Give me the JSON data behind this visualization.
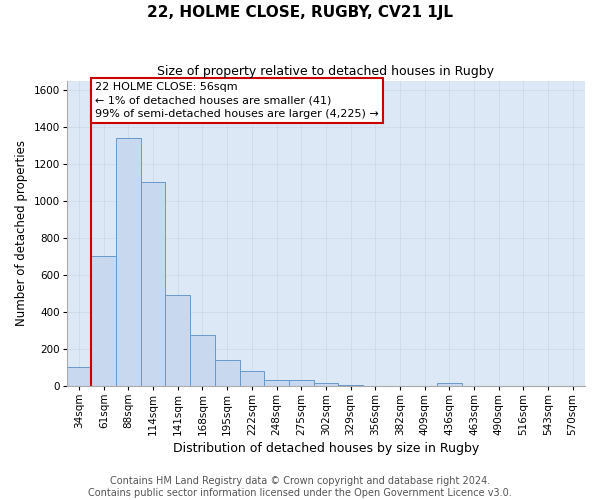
{
  "title": "22, HOLME CLOSE, RUGBY, CV21 1JL",
  "subtitle": "Size of property relative to detached houses in Rugby",
  "xlabel": "Distribution of detached houses by size in Rugby",
  "ylabel": "Number of detached properties",
  "bar_labels": [
    "34sqm",
    "61sqm",
    "88sqm",
    "114sqm",
    "141sqm",
    "168sqm",
    "195sqm",
    "222sqm",
    "248sqm",
    "275sqm",
    "302sqm",
    "329sqm",
    "356sqm",
    "382sqm",
    "409sqm",
    "436sqm",
    "463sqm",
    "490sqm",
    "516sqm",
    "543sqm",
    "570sqm"
  ],
  "bar_values": [
    100,
    700,
    1340,
    1100,
    490,
    275,
    140,
    80,
    35,
    35,
    15,
    5,
    2,
    1,
    0,
    15,
    0,
    0,
    0,
    0,
    0
  ],
  "bar_color": "#c8d8ef",
  "bar_edgecolor": "#6699cc",
  "bar_linewidth": 0.7,
  "vline_x_index": 1,
  "vline_color": "#cc0000",
  "vline_linewidth": 1.5,
  "annotation_text": "22 HOLME CLOSE: 56sqm\n← 1% of detached houses are smaller (41)\n99% of semi-detached houses are larger (4,225) →",
  "annotation_box_color": "#cc0000",
  "ylim": [
    0,
    1650
  ],
  "yticks": [
    0,
    200,
    400,
    600,
    800,
    1000,
    1200,
    1400,
    1600
  ],
  "grid_color": "#c8d8ea",
  "plot_bg_color": "#dce8f5",
  "footer1": "Contains HM Land Registry data © Crown copyright and database right 2024.",
  "footer2": "Contains public sector information licensed under the Open Government Licence v3.0.",
  "title_fontsize": 11,
  "subtitle_fontsize": 9,
  "xlabel_fontsize": 9,
  "ylabel_fontsize": 8.5,
  "tick_fontsize": 7.5,
  "annotation_fontsize": 8,
  "footer_fontsize": 7
}
